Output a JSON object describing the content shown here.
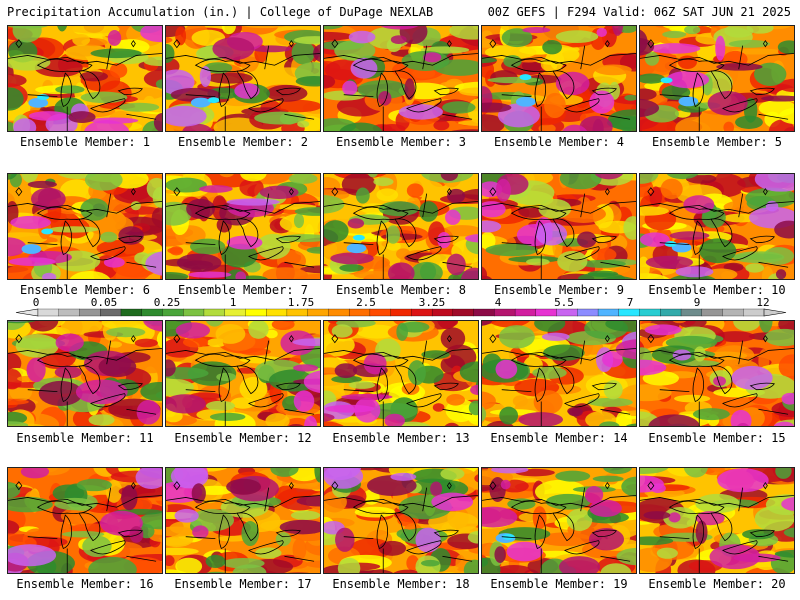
{
  "header": {
    "left_title": "Precipitation Accumulation (in.) | College of DuPage NEXLAB",
    "right_title": "00Z GEFS | F294 Valid: 06Z SAT JUN 21 2025"
  },
  "colorbar": {
    "tick_labels": [
      "0",
      "0.05",
      "0.25",
      "1",
      "1.75",
      "2.5",
      "3.25",
      "4",
      "5.5",
      "7",
      "9",
      "12"
    ],
    "colors": [
      "#d9d9d9",
      "#bdbdbd",
      "#969696",
      "#6b6b6b",
      "#1e6b1e",
      "#2e8b2e",
      "#4aa53a",
      "#7cc242",
      "#b2dc3c",
      "#e6f032",
      "#ffff00",
      "#ffe100",
      "#ffc300",
      "#ffa500",
      "#ff8c00",
      "#ff6e00",
      "#ff4b00",
      "#f02800",
      "#dc1414",
      "#be0a1e",
      "#a00a28",
      "#8c0a46",
      "#b4146e",
      "#d21ea0",
      "#e632d2",
      "#c864f0",
      "#8c8cff",
      "#50b4ff",
      "#28e6ff",
      "#28cdd2",
      "#32aaaa",
      "#6e8c8c",
      "#969696",
      "#b4b4b4",
      "#cccccc"
    ]
  },
  "panels": [
    {
      "label": "Ensemble Member: 1"
    },
    {
      "label": "Ensemble Member: 2"
    },
    {
      "label": "Ensemble Member: 3"
    },
    {
      "label": "Ensemble Member: 4"
    },
    {
      "label": "Ensemble Member: 5"
    },
    {
      "label": "Ensemble Member: 6"
    },
    {
      "label": "Ensemble Member: 7"
    },
    {
      "label": "Ensemble Member: 8"
    },
    {
      "label": "Ensemble Member: 9"
    },
    {
      "label": "Ensemble Member: 10"
    },
    {
      "label": "Ensemble Member: 11"
    },
    {
      "label": "Ensemble Member: 12"
    },
    {
      "label": "Ensemble Member: 13"
    },
    {
      "label": "Ensemble Member: 14"
    },
    {
      "label": "Ensemble Member: 15"
    },
    {
      "label": "Ensemble Member: 16"
    },
    {
      "label": "Ensemble Member: 17"
    },
    {
      "label": "Ensemble Member: 18"
    },
    {
      "label": "Ensemble Member: 19"
    },
    {
      "label": "Ensemble Member: 20"
    }
  ]
}
